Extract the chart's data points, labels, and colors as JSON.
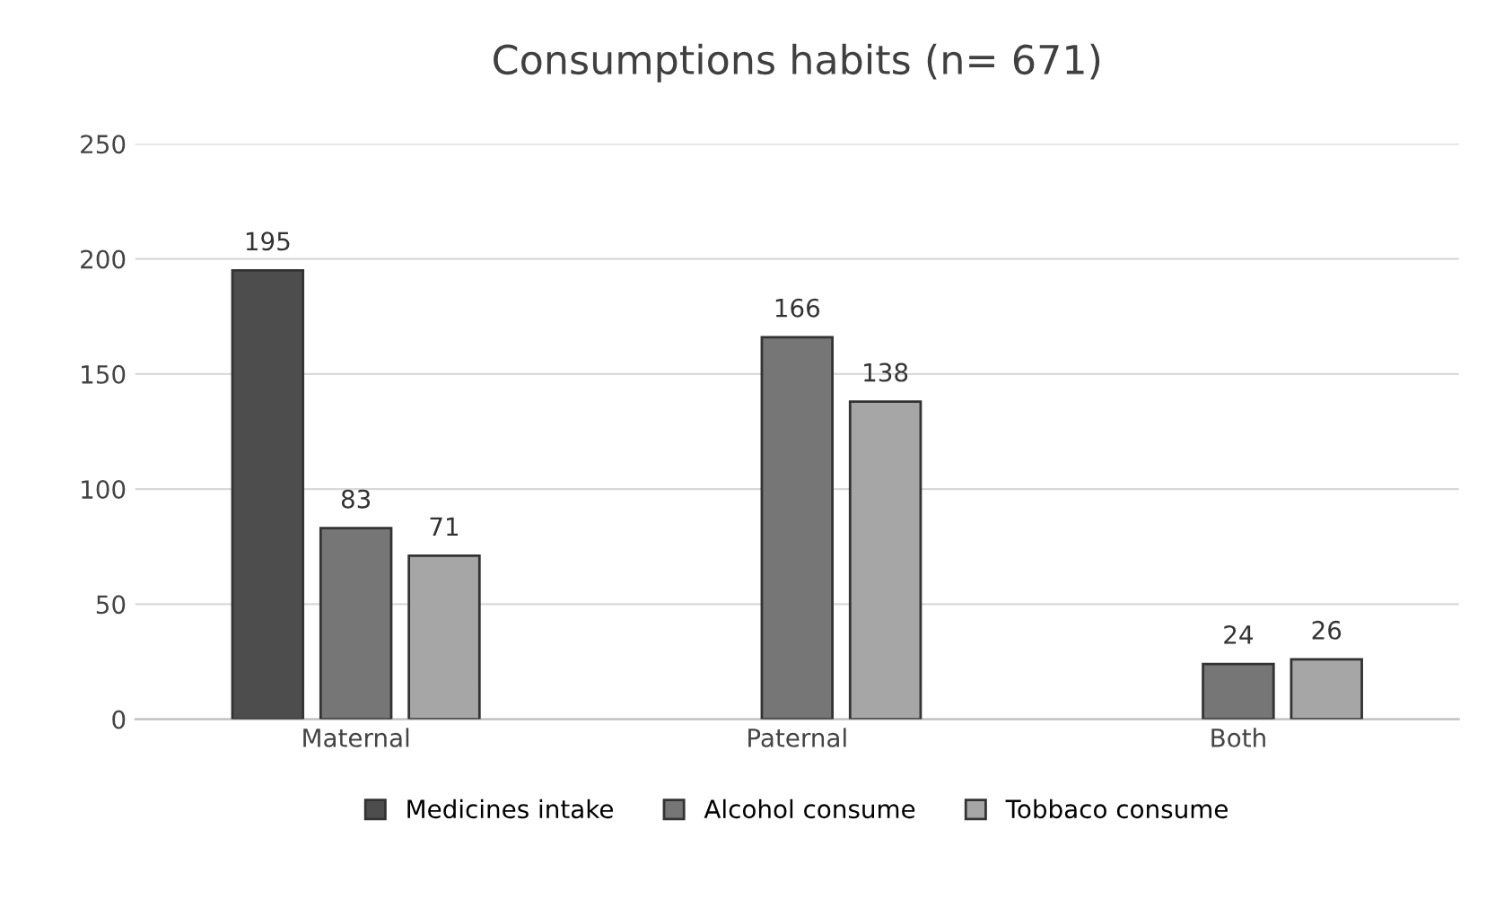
{
  "chart_data": {
    "type": "bar",
    "title": "Consumptions habits (n= 671)",
    "categories": [
      "Maternal",
      "Paternal",
      "Both"
    ],
    "series": [
      {
        "name": "Medicines intake",
        "color": "#4d4d4d",
        "values": [
          195,
          null,
          null
        ]
      },
      {
        "name": "Alcohol consume",
        "color": "#767676",
        "values": [
          83,
          166,
          24
        ]
      },
      {
        "name": "Tobbaco consume",
        "color": "#a6a6a6",
        "values": [
          71,
          138,
          26
        ]
      }
    ],
    "ylim": [
      0,
      250
    ],
    "yticks": [
      0,
      50,
      100,
      150,
      200,
      250
    ],
    "grid": "y",
    "legend": "bottom",
    "data_labels": true
  }
}
